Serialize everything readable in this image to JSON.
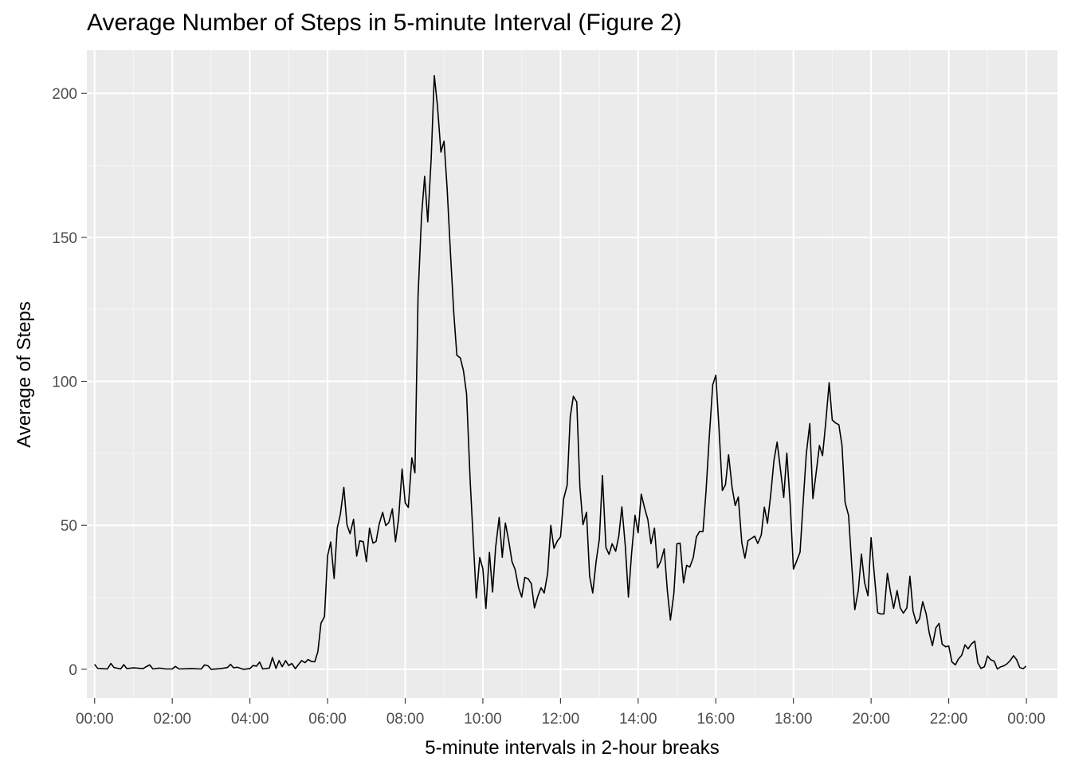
{
  "title": "Average Number of Steps in 5-minute Interval (Figure 2)",
  "colors": {
    "panel_background": "#ebebeb",
    "grid_major": "#ffffff",
    "grid_minor": "#f5f5f5",
    "line": "#000000",
    "tick_text": "#4d4d4d"
  },
  "chart_data": {
    "type": "line",
    "title": "Average Number of Steps in 5-minute Interval (Figure 2)",
    "xlabel": "5-minute intervals in 2-hour breaks",
    "ylabel": "Average of Steps",
    "x_tick_labels": [
      "00:00",
      "02:00",
      "04:00",
      "06:00",
      "08:00",
      "10:00",
      "12:00",
      "14:00",
      "16:00",
      "18:00",
      "20:00",
      "22:00",
      "00:00"
    ],
    "x_tick_hours": [
      0,
      2,
      4,
      6,
      8,
      10,
      12,
      14,
      16,
      18,
      20,
      22,
      24
    ],
    "x_unit": "hours since 00:00",
    "xlim": [
      -0.2,
      24.8
    ],
    "y_ticks": [
      0,
      50,
      100,
      150,
      200
    ],
    "y_tick_labels": [
      "0",
      "50",
      "100",
      "150",
      "200"
    ],
    "ylim": [
      -10,
      215
    ],
    "grid": true,
    "legend": "none",
    "series": [
      {
        "points": [
          [
            0.0,
            1.7
          ],
          [
            0.08,
            0.3
          ],
          [
            0.33,
            0.1
          ],
          [
            0.42,
            2.0
          ],
          [
            0.5,
            0.6
          ],
          [
            0.67,
            0.1
          ],
          [
            0.75,
            1.6
          ],
          [
            0.83,
            0.2
          ],
          [
            1.0,
            0.5
          ],
          [
            1.25,
            0.2
          ],
          [
            1.33,
            0.9
          ],
          [
            1.42,
            1.5
          ],
          [
            1.5,
            0.1
          ],
          [
            1.67,
            0.4
          ],
          [
            1.83,
            0.1
          ],
          [
            2.0,
            0.1
          ],
          [
            2.08,
            1.0
          ],
          [
            2.17,
            0.1
          ],
          [
            2.5,
            0.2
          ],
          [
            2.75,
            0.1
          ],
          [
            2.83,
            1.5
          ],
          [
            2.92,
            1.2
          ],
          [
            3.0,
            0.0
          ],
          [
            3.25,
            0.2
          ],
          [
            3.42,
            0.6
          ],
          [
            3.5,
            1.7
          ],
          [
            3.58,
            0.5
          ],
          [
            3.67,
            0.7
          ],
          [
            3.83,
            0.0
          ],
          [
            4.0,
            0.2
          ],
          [
            4.08,
            1.3
          ],
          [
            4.17,
            1.1
          ],
          [
            4.25,
            2.5
          ],
          [
            4.33,
            0.1
          ],
          [
            4.5,
            0.4
          ],
          [
            4.58,
            4.1
          ],
          [
            4.67,
            0.3
          ],
          [
            4.75,
            3.0
          ],
          [
            4.83,
            0.9
          ],
          [
            4.92,
            3.0
          ],
          [
            5.0,
            1.3
          ],
          [
            5.08,
            2.0
          ],
          [
            5.17,
            0.2
          ],
          [
            5.33,
            3.0
          ],
          [
            5.42,
            2.3
          ],
          [
            5.5,
            3.4
          ],
          [
            5.58,
            2.7
          ],
          [
            5.67,
            2.6
          ],
          [
            5.75,
            6.1
          ],
          [
            5.83,
            16.0
          ],
          [
            5.92,
            18.3
          ],
          [
            6.0,
            39.4
          ],
          [
            6.08,
            44.2
          ],
          [
            6.17,
            31.5
          ],
          [
            6.25,
            49.0
          ],
          [
            6.33,
            53.8
          ],
          [
            6.42,
            63.2
          ],
          [
            6.5,
            50.2
          ],
          [
            6.58,
            47.1
          ],
          [
            6.67,
            52.1
          ],
          [
            6.75,
            39.3
          ],
          [
            6.83,
            44.6
          ],
          [
            6.92,
            44.3
          ],
          [
            7.0,
            37.4
          ],
          [
            7.08,
            49.0
          ],
          [
            7.17,
            43.8
          ],
          [
            7.25,
            44.4
          ],
          [
            7.33,
            50.5
          ],
          [
            7.42,
            54.5
          ],
          [
            7.5,
            49.9
          ],
          [
            7.58,
            51.0
          ],
          [
            7.67,
            55.7
          ],
          [
            7.75,
            44.3
          ],
          [
            7.83,
            52.3
          ],
          [
            7.92,
            69.5
          ],
          [
            8.0,
            57.8
          ],
          [
            8.08,
            56.2
          ],
          [
            8.17,
            73.4
          ],
          [
            8.25,
            68.2
          ],
          [
            8.33,
            129.4
          ],
          [
            8.42,
            157.5
          ],
          [
            8.5,
            171.2
          ],
          [
            8.58,
            155.4
          ],
          [
            8.67,
            177.3
          ],
          [
            8.75,
            206.2
          ],
          [
            8.83,
            195.9
          ],
          [
            8.92,
            179.6
          ],
          [
            9.0,
            183.4
          ],
          [
            9.08,
            167.0
          ],
          [
            9.17,
            143.5
          ],
          [
            9.25,
            124.0
          ],
          [
            9.33,
            109.1
          ],
          [
            9.42,
            108.1
          ],
          [
            9.5,
            103.7
          ],
          [
            9.58,
            95.6
          ],
          [
            9.67,
            66.2
          ],
          [
            9.75,
            45.2
          ],
          [
            9.83,
            24.8
          ],
          [
            9.92,
            38.8
          ],
          [
            10.0,
            34.98
          ],
          [
            10.08,
            21.1
          ],
          [
            10.17,
            40.6
          ],
          [
            10.25,
            26.8
          ],
          [
            10.33,
            42.4
          ],
          [
            10.42,
            52.7
          ],
          [
            10.5,
            38.9
          ],
          [
            10.58,
            50.8
          ],
          [
            10.67,
            44.3
          ],
          [
            10.75,
            37.4
          ],
          [
            10.83,
            34.7
          ],
          [
            10.92,
            28.3
          ],
          [
            11.0,
            25.1
          ],
          [
            11.08,
            31.9
          ],
          [
            11.17,
            31.4
          ],
          [
            11.25,
            29.7
          ],
          [
            11.33,
            21.3
          ],
          [
            11.42,
            25.5
          ],
          [
            11.5,
            28.3
          ],
          [
            11.58,
            26.5
          ],
          [
            11.67,
            33.4
          ],
          [
            11.75,
            49.98
          ],
          [
            11.83,
            42.0
          ],
          [
            11.92,
            44.6
          ],
          [
            12.0,
            46.0
          ],
          [
            12.08,
            59.2
          ],
          [
            12.17,
            63.9
          ],
          [
            12.25,
            87.6
          ],
          [
            12.33,
            94.8
          ],
          [
            12.42,
            92.8
          ],
          [
            12.5,
            63.4
          ],
          [
            12.58,
            50.2
          ],
          [
            12.67,
            54.5
          ],
          [
            12.75,
            32.4
          ],
          [
            12.83,
            26.5
          ],
          [
            12.92,
            37.7
          ],
          [
            13.0,
            45.1
          ],
          [
            13.08,
            67.3
          ],
          [
            13.17,
            42.3
          ],
          [
            13.25,
            39.9
          ],
          [
            13.33,
            43.6
          ],
          [
            13.42,
            40.98
          ],
          [
            13.5,
            46.2
          ],
          [
            13.58,
            56.4
          ],
          [
            13.67,
            42.8
          ],
          [
            13.75,
            25.1
          ],
          [
            13.83,
            39.98
          ],
          [
            13.92,
            53.5
          ],
          [
            14.0,
            47.4
          ],
          [
            14.08,
            60.8
          ],
          [
            14.17,
            55.8
          ],
          [
            14.25,
            51.96
          ],
          [
            14.33,
            43.6
          ],
          [
            14.42,
            49.0
          ],
          [
            14.5,
            35.2
          ],
          [
            14.58,
            37.4
          ],
          [
            14.67,
            41.8
          ],
          [
            14.75,
            27.5
          ],
          [
            14.83,
            17.1
          ],
          [
            14.92,
            26.2
          ],
          [
            15.0,
            43.6
          ],
          [
            15.08,
            43.8
          ],
          [
            15.17,
            30.0
          ],
          [
            15.25,
            36.1
          ],
          [
            15.33,
            35.5
          ],
          [
            15.42,
            38.8
          ],
          [
            15.5,
            45.96
          ],
          [
            15.58,
            47.8
          ],
          [
            15.67,
            47.8
          ],
          [
            15.75,
            62.2
          ],
          [
            15.83,
            80.3
          ],
          [
            15.92,
            98.8
          ],
          [
            16.0,
            102.1
          ],
          [
            16.08,
            83.96
          ],
          [
            16.17,
            62.1
          ],
          [
            16.25,
            64.1
          ],
          [
            16.33,
            74.5
          ],
          [
            16.42,
            63.2
          ],
          [
            16.5,
            56.9
          ],
          [
            16.58,
            59.8
          ],
          [
            16.67,
            43.9
          ],
          [
            16.75,
            38.6
          ],
          [
            16.83,
            44.7
          ],
          [
            16.92,
            45.5
          ],
          [
            17.0,
            46.2
          ],
          [
            17.08,
            43.7
          ],
          [
            17.17,
            46.6
          ],
          [
            17.25,
            56.3
          ],
          [
            17.33,
            50.7
          ],
          [
            17.42,
            61.2
          ],
          [
            17.5,
            72.7
          ],
          [
            17.58,
            78.9
          ],
          [
            17.67,
            68.9
          ],
          [
            17.75,
            59.7
          ],
          [
            17.83,
            75.1
          ],
          [
            17.92,
            56.5
          ],
          [
            18.0,
            34.8
          ],
          [
            18.08,
            37.5
          ],
          [
            18.17,
            40.7
          ],
          [
            18.25,
            58.0
          ],
          [
            18.33,
            74.7
          ],
          [
            18.42,
            85.3
          ],
          [
            18.5,
            59.3
          ],
          [
            18.58,
            67.8
          ],
          [
            18.67,
            77.7
          ],
          [
            18.75,
            74.2
          ],
          [
            18.83,
            85.3
          ],
          [
            18.92,
            99.5
          ],
          [
            19.0,
            86.6
          ],
          [
            19.08,
            85.6
          ],
          [
            19.17,
            84.9
          ],
          [
            19.25,
            77.8
          ],
          [
            19.33,
            58.0
          ],
          [
            19.42,
            53.4
          ],
          [
            19.5,
            36.3
          ],
          [
            19.58,
            20.7
          ],
          [
            19.67,
            27.4
          ],
          [
            19.75,
            40.0
          ],
          [
            19.83,
            30.2
          ],
          [
            19.92,
            25.5
          ],
          [
            20.0,
            45.7
          ],
          [
            20.08,
            33.5
          ],
          [
            20.17,
            19.6
          ],
          [
            20.25,
            19.2
          ],
          [
            20.33,
            19.2
          ],
          [
            20.42,
            33.3
          ],
          [
            20.5,
            26.8
          ],
          [
            20.58,
            21.2
          ],
          [
            20.67,
            27.3
          ],
          [
            20.75,
            21.3
          ],
          [
            20.83,
            19.5
          ],
          [
            20.92,
            21.3
          ],
          [
            21.0,
            32.3
          ],
          [
            21.08,
            20.2
          ],
          [
            21.17,
            15.9
          ],
          [
            21.25,
            17.6
          ],
          [
            21.33,
            23.5
          ],
          [
            21.42,
            19.2
          ],
          [
            21.5,
            12.5
          ],
          [
            21.58,
            8.2
          ],
          [
            21.67,
            14.4
          ],
          [
            21.75,
            15.9
          ],
          [
            21.83,
            8.7
          ],
          [
            21.92,
            7.8
          ],
          [
            22.0,
            8.1
          ],
          [
            22.08,
            2.6
          ],
          [
            22.17,
            1.5
          ],
          [
            22.25,
            3.6
          ],
          [
            22.33,
            4.8
          ],
          [
            22.42,
            8.5
          ],
          [
            22.5,
            7.1
          ],
          [
            22.58,
            8.7
          ],
          [
            22.67,
            9.8
          ],
          [
            22.75,
            2.2
          ],
          [
            22.83,
            0.3
          ],
          [
            22.92,
            0.9
          ],
          [
            23.0,
            4.6
          ],
          [
            23.08,
            3.3
          ],
          [
            23.17,
            2.8
          ],
          [
            23.25,
            0.1
          ],
          [
            23.33,
            0.8
          ],
          [
            23.42,
            1.2
          ],
          [
            23.5,
            1.9
          ],
          [
            23.58,
            3.0
          ],
          [
            23.67,
            4.7
          ],
          [
            23.75,
            3.3
          ],
          [
            23.83,
            0.6
          ],
          [
            23.92,
            0.2
          ],
          [
            23.99,
            1.1
          ]
        ]
      }
    ]
  }
}
